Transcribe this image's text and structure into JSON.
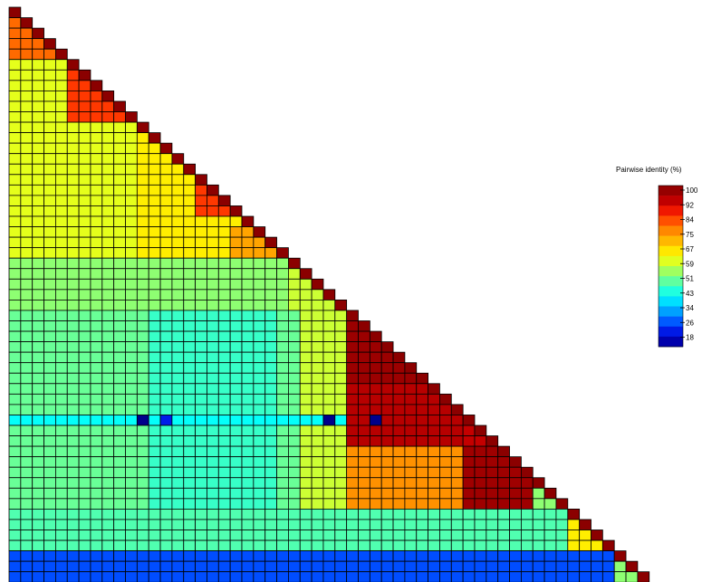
{
  "chart_data": {
    "type": "heatmap",
    "layout": "lower-triangular",
    "n": 55,
    "legend": {
      "title": "Pairwise identity (%)",
      "ticks": [
        "100",
        "92",
        "84",
        "75",
        "67",
        "59",
        "51",
        "43",
        "34",
        "26",
        "18"
      ]
    },
    "color_scale": {
      "min": 18,
      "max": 100,
      "stops": [
        "#00008b",
        "#0000cd",
        "#0033ff",
        "#0080ff",
        "#00bfff",
        "#00ffff",
        "#40ffbf",
        "#80ff80",
        "#c0ff40",
        "#ffff00",
        "#ffd000",
        "#ffa000",
        "#ff7000",
        "#ff3000",
        "#e00000",
        "#a00000",
        "#8b0000"
      ]
    },
    "blocks": [
      {
        "rows": [
          0,
          4
        ],
        "cols": [
          0,
          4
        ],
        "value": 80
      },
      {
        "rows": [
          5,
          10
        ],
        "cols": [
          5,
          10
        ],
        "value": 84
      },
      {
        "rows": [
          5,
          10
        ],
        "cols": [
          0,
          4
        ],
        "value": 62
      },
      {
        "rows": [
          11,
          23
        ],
        "cols": [
          0,
          10
        ],
        "value": 62
      },
      {
        "rows": [
          11,
          23
        ],
        "cols": [
          11,
          23
        ],
        "value": 66
      },
      {
        "rows": [
          16,
          19
        ],
        "cols": [
          16,
          19
        ],
        "value": 84
      },
      {
        "rows": [
          21,
          23
        ],
        "cols": [
          19,
          23
        ],
        "value": 74
      },
      {
        "rows": [
          24,
          28
        ],
        "cols": [
          0,
          23
        ],
        "value": 55
      },
      {
        "rows": [
          24,
          28
        ],
        "cols": [
          24,
          28
        ],
        "value": 60
      },
      {
        "rows": [
          29,
          47
        ],
        "cols": [
          0,
          28
        ],
        "value": 52
      },
      {
        "rows": [
          29,
          47
        ],
        "cols": [
          12,
          22
        ],
        "value": 48
      },
      {
        "rows": [
          29,
          47
        ],
        "cols": [
          25,
          28
        ],
        "value": 60
      },
      {
        "rows": [
          29,
          35
        ],
        "cols": [
          29,
          35
        ],
        "value": 96
      },
      {
        "rows": [
          36,
          45
        ],
        "cols": [
          29,
          38
        ],
        "value": 93
      },
      {
        "rows": [
          36,
          45
        ],
        "cols": [
          39,
          44
        ],
        "value": 92
      },
      {
        "rows": [
          42,
          45
        ],
        "cols": [
          29,
          38
        ],
        "value": 76
      },
      {
        "rows": [
          46,
          47
        ],
        "cols": [
          29,
          44
        ],
        "value": 76
      },
      {
        "rows": [
          42,
          47
        ],
        "cols": [
          39,
          44
        ],
        "value": 95
      },
      {
        "rows": [
          39,
          39
        ],
        "cols": [
          0,
          28
        ],
        "value": 44
      },
      {
        "rows": [
          48,
          51
        ],
        "cols": [
          0,
          49
        ],
        "value": 50
      },
      {
        "rows": [
          48,
          51
        ],
        "cols": [
          48,
          51
        ],
        "value": 66
      },
      {
        "rows": [
          52,
          54
        ],
        "cols": [
          0,
          52
        ],
        "value": 30
      },
      {
        "rows": [
          53,
          54
        ],
        "cols": [
          52,
          54
        ],
        "value": 55
      }
    ],
    "point_values": [
      {
        "row": 39,
        "col": 11,
        "value": 18
      },
      {
        "row": 39,
        "col": 13,
        "value": 26
      },
      {
        "row": 39,
        "col": 27,
        "value": 18
      },
      {
        "row": 39,
        "col": 31,
        "value": 18
      }
    ],
    "diagonal_value": 100
  }
}
